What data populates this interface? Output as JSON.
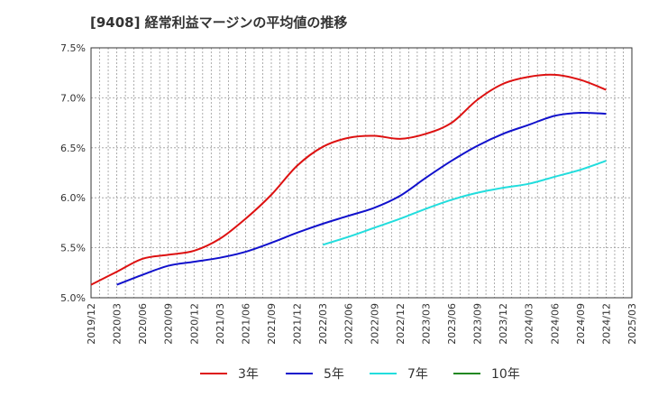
{
  "chart_data": {
    "type": "line",
    "title": "[9408]  経常利益マージンの平均値の推移",
    "xlabel": "",
    "ylabel": "",
    "ylim": [
      0.05,
      0.075
    ],
    "y_ticks": [
      "5.0%",
      "5.5%",
      "6.0%",
      "6.5%",
      "7.0%",
      "7.5%"
    ],
    "x_ticks": [
      "2019/12",
      "2020/03",
      "2020/06",
      "2020/09",
      "2020/12",
      "2021/03",
      "2021/06",
      "2021/09",
      "2021/12",
      "2022/03",
      "2022/06",
      "2022/09",
      "2022/12",
      "2023/03",
      "2023/06",
      "2023/09",
      "2023/12",
      "2024/03",
      "2024/06",
      "2024/09",
      "2024/12",
      "2025/03"
    ],
    "grid": true,
    "legend_position": "bottom",
    "series": [
      {
        "name": "3年",
        "color": "#dd1111",
        "x": [
          "2019/12",
          "2020/03",
          "2020/06",
          "2020/09",
          "2020/12",
          "2021/03",
          "2021/06",
          "2021/09",
          "2021/12",
          "2022/03",
          "2022/06",
          "2022/09",
          "2022/12",
          "2023/03",
          "2023/06",
          "2023/09",
          "2023/12",
          "2024/03",
          "2024/06",
          "2024/09",
          "2024/12"
        ],
        "values": [
          0.0513,
          0.0526,
          0.0539,
          0.0543,
          0.0547,
          0.0559,
          0.0579,
          0.0603,
          0.0632,
          0.0651,
          0.066,
          0.0662,
          0.0659,
          0.0664,
          0.0675,
          0.0698,
          0.0714,
          0.0721,
          0.0723,
          0.0718,
          0.0708
        ]
      },
      {
        "name": "5年",
        "color": "#1111cc",
        "x": [
          "2020/03",
          "2020/06",
          "2020/09",
          "2020/12",
          "2021/03",
          "2021/06",
          "2021/09",
          "2021/12",
          "2022/03",
          "2022/06",
          "2022/09",
          "2022/12",
          "2023/03",
          "2023/06",
          "2023/09",
          "2023/12",
          "2024/03",
          "2024/06",
          "2024/09",
          "2024/12"
        ],
        "values": [
          0.0513,
          0.0523,
          0.0532,
          0.0536,
          0.054,
          0.0546,
          0.0555,
          0.0565,
          0.0574,
          0.0582,
          0.059,
          0.0602,
          0.062,
          0.0637,
          0.0652,
          0.0664,
          0.0673,
          0.0682,
          0.0685,
          0.0684
        ]
      },
      {
        "name": "7年",
        "color": "#22dddd",
        "x": [
          "2022/03",
          "2022/06",
          "2022/09",
          "2022/12",
          "2023/03",
          "2023/06",
          "2023/09",
          "2023/12",
          "2024/03",
          "2024/06",
          "2024/09",
          "2024/12"
        ],
        "values": [
          0.0553,
          0.0561,
          0.057,
          0.0579,
          0.0589,
          0.0598,
          0.0605,
          0.061,
          0.0614,
          0.0621,
          0.0628,
          0.0637
        ]
      },
      {
        "name": "10年",
        "color": "#228822",
        "x": [],
        "values": []
      }
    ]
  }
}
